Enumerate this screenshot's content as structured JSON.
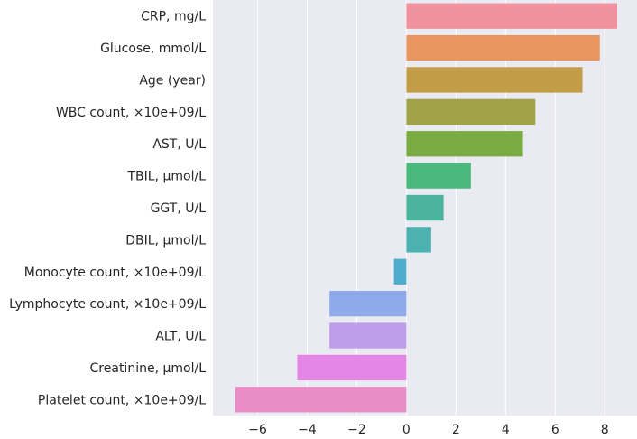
{
  "chart_data": {
    "type": "bar",
    "orientation": "horizontal",
    "title": "",
    "xlabel": "",
    "ylabel": "",
    "categories": [
      "CRP, mg/L",
      "Glucose, mmol/L",
      "Age (year)",
      "WBC count, ×10e+09/L",
      "AST, U/L",
      "TBIL, µmol/L",
      "GGT, U/L",
      "DBIL, µmol/L",
      "Monocyte count, ×10e+09/L",
      "Lymphocyte count, ×10e+09/L",
      "ALT,  U/L",
      "Creatinine, µmol/L",
      "Platelet count, ×10e+09/L"
    ],
    "values": [
      8.5,
      7.8,
      7.1,
      5.2,
      4.7,
      2.6,
      1.5,
      1.0,
      -0.5,
      -3.1,
      -3.1,
      -4.4,
      -6.9
    ],
    "colors": [
      "#ef929e",
      "#e8955f",
      "#c39c47",
      "#a0a447",
      "#79ac43",
      "#4aba7c",
      "#4bb49c",
      "#4cb1b1",
      "#4eadcd",
      "#8eaaea",
      "#be9eeb",
      "#e386e6",
      "#e88cc6"
    ],
    "xlim": [
      -7.8,
      9.3
    ],
    "xticks": [
      -6,
      -4,
      -2,
      0,
      2,
      4,
      6,
      8
    ],
    "xtick_labels": [
      "−6",
      "−4",
      "−2",
      "0",
      "2",
      "4",
      "6",
      "8"
    ],
    "grid": true,
    "background": "#eaeaf2",
    "grid_color": "#ffffff"
  }
}
